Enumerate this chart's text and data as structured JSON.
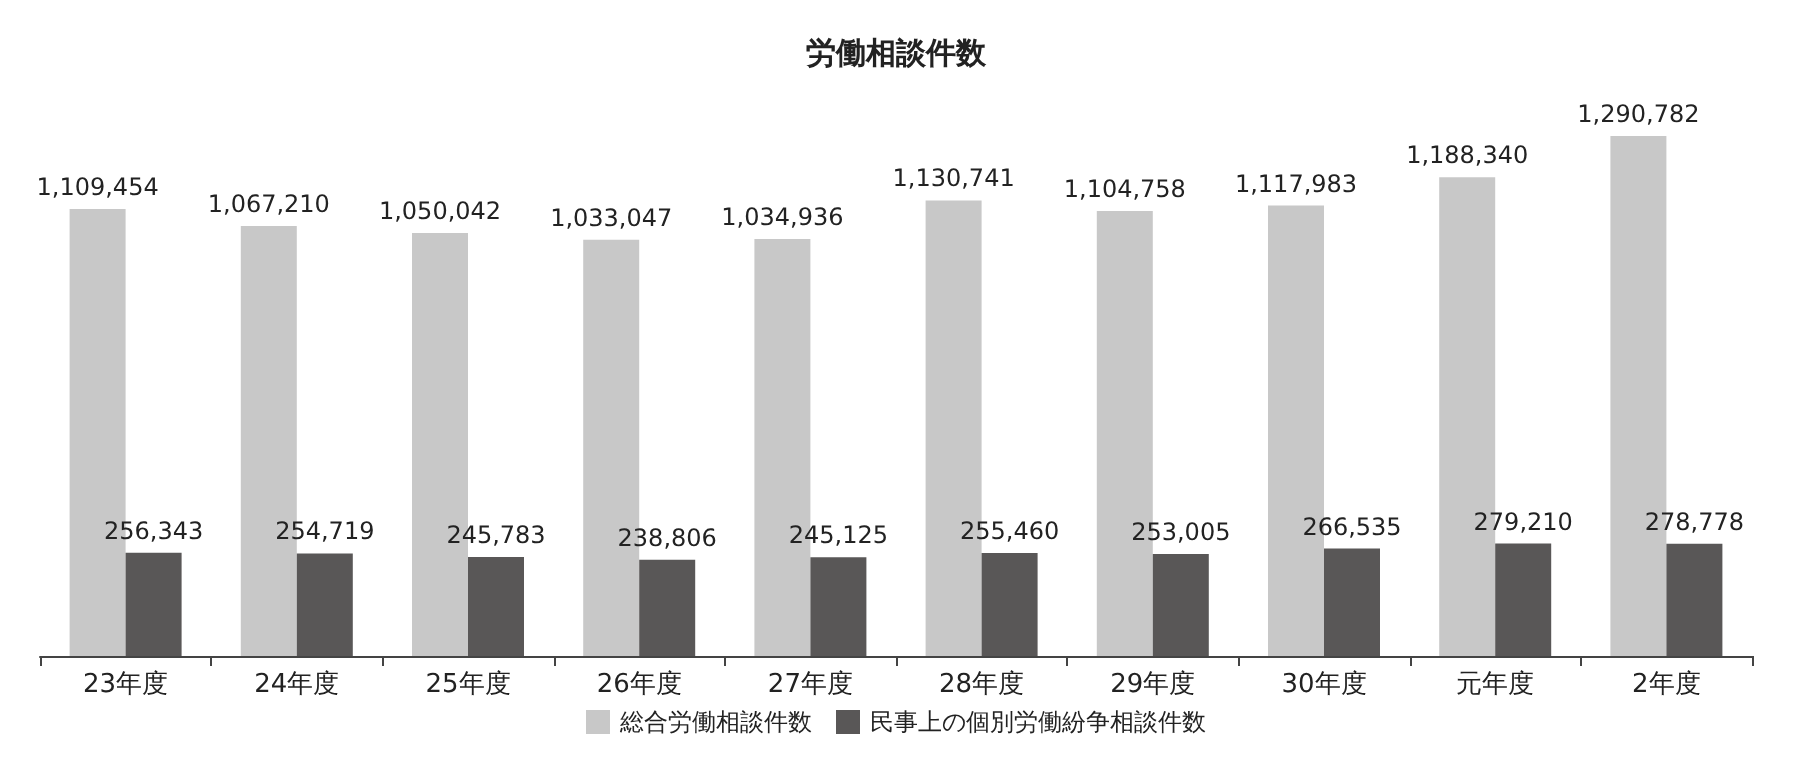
{
  "chart_data": {
    "type": "bar",
    "title": "労働相談件数",
    "categories": [
      "23年度",
      "24年度",
      "25年度",
      "26年度",
      "27年度",
      "28年度",
      "29年度",
      "30年度",
      "元年度",
      "2年度"
    ],
    "series": [
      {
        "name": "総合労働相談件数",
        "color": "#c8c8c8",
        "values": [
          1109454,
          1067210,
          1050042,
          1033047,
          1034936,
          1130741,
          1104758,
          1117983,
          1188340,
          1290782
        ],
        "value_labels": [
          "1,109,454",
          "1,067,210",
          "1,050,042",
          "1,033,047",
          "1,034,936",
          "1,130,741",
          "1,104,758",
          "1,117,983",
          "1,188,340",
          "1,290,782"
        ]
      },
      {
        "name": "民事上の個別労働紛争相談件数",
        "color": "#595757",
        "values": [
          256343,
          254719,
          245783,
          238806,
          245125,
          255460,
          253005,
          266535,
          279210,
          278778
        ],
        "value_labels": [
          "256,343",
          "254,719",
          "245,783",
          "238,806",
          "245,125",
          "255,460",
          "253,005",
          "266,535",
          "279,210",
          "278,778"
        ]
      }
    ],
    "legend": "bottom"
  }
}
